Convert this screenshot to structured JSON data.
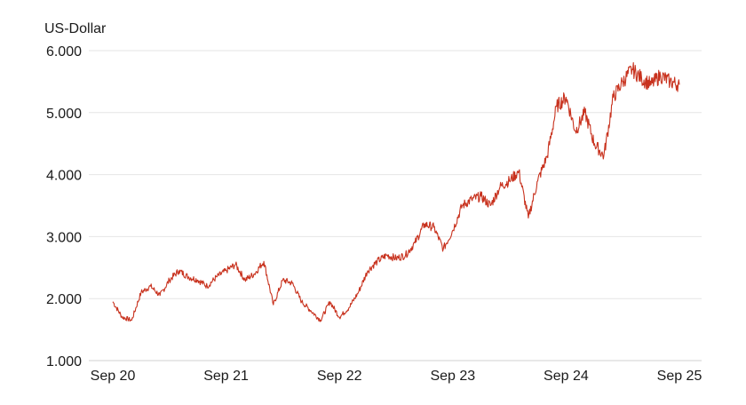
{
  "chart_data": {
    "type": "line",
    "ylabel": "US-Dollar",
    "xlabel": "",
    "title": "",
    "ylim": [
      1000,
      6000
    ],
    "y_ticks": [
      {
        "value": 1000,
        "label": "1.000"
      },
      {
        "value": 2000,
        "label": "2.000"
      },
      {
        "value": 3000,
        "label": "3.000"
      },
      {
        "value": 4000,
        "label": "4.000"
      },
      {
        "value": 5000,
        "label": "5.000"
      },
      {
        "value": 6000,
        "label": "6.000"
      }
    ],
    "x_ticks": [
      {
        "value": "2020-09",
        "label": "Sep 20"
      },
      {
        "value": "2021-09",
        "label": "Sep 21"
      },
      {
        "value": "2022-09",
        "label": "Sep 22"
      },
      {
        "value": "2023-09",
        "label": "Sep 23"
      },
      {
        "value": "2024-09",
        "label": "Sep 24"
      },
      {
        "value": "2025-09",
        "label": "Sep 25"
      }
    ],
    "xlim": [
      "2020-09",
      "2025-09"
    ],
    "grid": true,
    "line_color": "#c8321e",
    "series": [
      {
        "x": [
          "2020-09",
          "2020-10",
          "2020-11",
          "2020-12",
          "2021-01",
          "2021-02",
          "2021-03",
          "2021-04",
          "2021-05",
          "2021-06",
          "2021-07",
          "2021-08",
          "2021-09",
          "2021-10",
          "2021-11",
          "2021-12",
          "2022-01",
          "2022-02",
          "2022-03",
          "2022-04",
          "2022-05",
          "2022-06",
          "2022-07",
          "2022-08",
          "2022-09",
          "2022-10",
          "2022-11",
          "2022-12",
          "2023-01",
          "2023-02",
          "2023-03",
          "2023-04",
          "2023-05",
          "2023-06",
          "2023-07",
          "2023-08",
          "2023-09",
          "2023-10",
          "2023-11",
          "2023-12",
          "2024-01",
          "2024-02",
          "2024-03",
          "2024-04",
          "2024-05",
          "2024-06",
          "2024-07",
          "2024-08",
          "2024-09",
          "2024-10",
          "2024-11",
          "2024-12",
          "2025-01",
          "2025-02",
          "2025-03",
          "2025-04",
          "2025-05",
          "2025-06",
          "2025-07",
          "2025-08",
          "2025-09"
        ],
        "values": [
          1950,
          1700,
          1650,
          2100,
          2200,
          2050,
          2300,
          2450,
          2350,
          2300,
          2200,
          2350,
          2450,
          2550,
          2300,
          2400,
          2600,
          1900,
          2300,
          2250,
          1950,
          1800,
          1650,
          1950,
          1700,
          1850,
          2100,
          2450,
          2600,
          2700,
          2650,
          2700,
          2900,
          3200,
          3150,
          2800,
          3100,
          3500,
          3600,
          3650,
          3500,
          3800,
          3900,
          4050,
          3300,
          3900,
          4300,
          5100,
          5250,
          4700,
          5000,
          4500,
          4300,
          5250,
          5500,
          5700,
          5550,
          5450,
          5600,
          5500,
          5450
        ]
      }
    ]
  }
}
